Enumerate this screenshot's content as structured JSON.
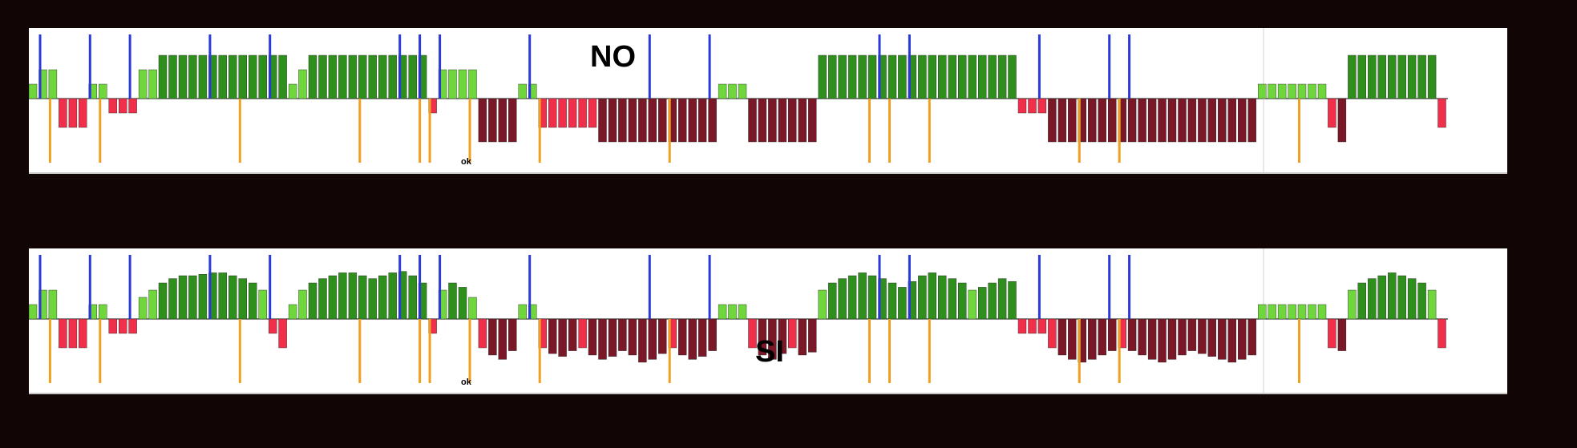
{
  "colors": {
    "background": "#120505",
    "panel": "#ffffff",
    "green_light": "#6fd63c",
    "green_dark": "#2e8f1c",
    "red_light": "#f0304a",
    "red_dark": "#7a1828",
    "blue_marker": "#2a3ad8",
    "orange_marker": "#f0a020"
  },
  "chart_data": [
    {
      "type": "bar",
      "text_label": "NO",
      "ok_label": "ok",
      "bar_count": 140,
      "blue_markers": [
        1,
        6,
        10,
        18,
        24,
        37,
        39,
        41,
        50,
        62,
        68,
        85,
        88,
        101,
        108,
        110
      ],
      "orange_markers": [
        2,
        7,
        21,
        33,
        39,
        40,
        44,
        51,
        64,
        84,
        86,
        90,
        105,
        109,
        127
      ],
      "values": [
        1,
        2,
        2,
        -2,
        -2,
        -2,
        1,
        1,
        -1,
        -1,
        -1,
        2,
        2,
        3,
        3,
        3,
        3,
        3,
        3,
        3,
        3,
        3,
        3,
        3,
        3,
        3,
        1,
        2,
        3,
        3,
        3,
        3,
        3,
        3,
        3,
        3,
        3,
        3,
        3,
        3,
        -1,
        2,
        2,
        2,
        2,
        -3,
        -3,
        -3,
        -3,
        1,
        1,
        -2,
        -2,
        -2,
        -2,
        -2,
        -2,
        -3,
        -3,
        -3,
        -3,
        -3,
        -3,
        -3,
        -3,
        -3,
        -3,
        -3,
        -3,
        1,
        1,
        1,
        -3,
        -3,
        -3,
        -3,
        -3,
        -3,
        -3,
        3,
        3,
        3,
        3,
        3,
        3,
        3,
        3,
        3,
        3,
        3,
        3,
        3,
        3,
        3,
        3,
        3,
        3,
        3,
        3,
        -1,
        -1,
        -1,
        -3,
        -3,
        -3,
        -3,
        -3,
        -3,
        -3,
        -3,
        -3,
        -3,
        -3,
        -3,
        -3,
        -3,
        -3,
        -3,
        -3,
        -3,
        -3,
        -3,
        -3,
        1,
        1,
        1,
        1,
        1,
        1,
        1,
        -2,
        -3,
        3,
        3,
        3,
        3,
        3,
        3,
        3,
        3,
        3,
        -2
      ]
    },
    {
      "type": "bar",
      "text_label": "SI",
      "ok_label": "ok",
      "bar_count": 140,
      "blue_markers": [
        1,
        6,
        10,
        18,
        24,
        37,
        39,
        41,
        50,
        62,
        68,
        85,
        88,
        101,
        108,
        110
      ],
      "orange_markers": [
        2,
        7,
        21,
        33,
        39,
        40,
        44,
        51,
        64,
        84,
        86,
        90,
        105,
        109,
        127
      ],
      "values": [
        1,
        2,
        2,
        -2,
        -2,
        -2,
        1,
        1,
        -1,
        -1,
        -1,
        1.5,
        2,
        2.5,
        2.8,
        3,
        3,
        3.1,
        3.2,
        3.2,
        3,
        2.8,
        2.5,
        2,
        -1,
        -2,
        1,
        2,
        2.5,
        2.8,
        3,
        3.2,
        3.2,
        3,
        2.8,
        3,
        3.2,
        3.3,
        3,
        2.5,
        -1,
        2,
        2.5,
        2.2,
        1.5,
        -2,
        -2.5,
        -2.8,
        -2.2,
        1,
        1,
        -2,
        -2.4,
        -2.6,
        -2.2,
        -2,
        -2.5,
        -2.8,
        -2.6,
        -2.2,
        -2.5,
        -3,
        -2.8,
        -2.4,
        -2,
        -2.5,
        -2.8,
        -2.6,
        -2.2,
        1,
        1,
        1,
        -2,
        -2.5,
        -2.8,
        -2.4,
        -2,
        -2.5,
        -2.3,
        2,
        2.5,
        2.8,
        3,
        3.2,
        3,
        2.8,
        2.5,
        2.2,
        2.6,
        3,
        3.2,
        3,
        2.8,
        2.5,
        2,
        2.2,
        2.5,
        2.8,
        2.6,
        -1,
        -1,
        -1,
        -2,
        -2.5,
        -2.8,
        -3,
        -2.8,
        -2.5,
        -2.2,
        -2,
        -2.2,
        -2.5,
        -2.8,
        -3,
        -2.8,
        -2.5,
        -2.2,
        -2.4,
        -2.6,
        -2.8,
        -3,
        -2.8,
        -2.5,
        1,
        1,
        1,
        1,
        1,
        1,
        1,
        -2,
        -2.2,
        2,
        2.5,
        2.8,
        3,
        3.2,
        3,
        2.8,
        2.5,
        2,
        -2
      ]
    }
  ]
}
